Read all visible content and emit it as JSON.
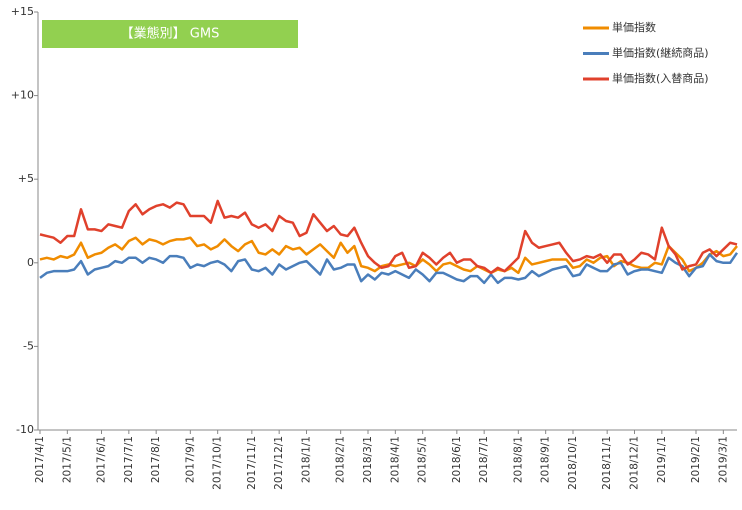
{
  "chart_data": {
    "type": "line",
    "title": "【業態別】 GMS",
    "categories": [
      "2017/4/1",
      null,
      null,
      null,
      "2017/5/1",
      null,
      null,
      null,
      null,
      "2017/6/1",
      null,
      null,
      null,
      "2017/7/1",
      null,
      null,
      null,
      "2017/8/1",
      null,
      null,
      null,
      null,
      "2017/9/1",
      null,
      null,
      null,
      "2017/10/1",
      null,
      null,
      null,
      null,
      "2017/11/1",
      null,
      null,
      null,
      "2017/12/1",
      null,
      null,
      null,
      "2018/1/1",
      null,
      null,
      null,
      null,
      "2018/2/1",
      null,
      null,
      null,
      "2018/3/1",
      null,
      null,
      null,
      "2018/4/1",
      null,
      null,
      null,
      "2018/5/1",
      null,
      null,
      null,
      null,
      "2018/6/1",
      null,
      null,
      null,
      "2018/7/1",
      null,
      null,
      null,
      null,
      "2018/8/1",
      null,
      null,
      null,
      "2018/9/1",
      null,
      null,
      null,
      "2018/10/1",
      null,
      null,
      null,
      null,
      "2018/11/1",
      null,
      null,
      null,
      "2018/12/1",
      null,
      null,
      null,
      "2019/1/1",
      null,
      null,
      null,
      null,
      "2019/2/1",
      null,
      null,
      null,
      "2019/3/1",
      null,
      null
    ],
    "series": [
      {
        "name": "単価指数",
        "color": "#f08c00",
        "values": [
          0.2,
          0.3,
          0.2,
          0.4,
          0.3,
          0.5,
          1.2,
          0.3,
          0.5,
          0.6,
          0.9,
          1.1,
          0.8,
          1.3,
          1.5,
          1.1,
          1.4,
          1.3,
          1.1,
          1.3,
          1.4,
          1.4,
          1.5,
          1.0,
          1.1,
          0.8,
          1.0,
          1.4,
          1.0,
          0.7,
          1.1,
          1.3,
          0.6,
          0.5,
          0.8,
          0.5,
          1.0,
          0.8,
          0.9,
          0.5,
          0.8,
          1.1,
          0.7,
          0.3,
          1.2,
          0.6,
          1.0,
          -0.2,
          -0.3,
          -0.5,
          -0.2,
          -0.1,
          -0.2,
          -0.1,
          0.0,
          -0.2,
          0.2,
          -0.1,
          -0.5,
          -0.1,
          0.0,
          -0.2,
          -0.4,
          -0.5,
          -0.2,
          -0.4,
          -0.6,
          -0.4,
          -0.5,
          -0.3,
          -0.6,
          0.3,
          -0.1,
          0.0,
          0.1,
          0.2,
          0.2,
          0.2,
          -0.3,
          -0.2,
          0.2,
          0.0,
          0.3,
          0.4,
          -0.2,
          0.1,
          0.0,
          -0.2,
          -0.3,
          -0.3,
          0.0,
          -0.1,
          1.0,
          0.6,
          0.2,
          -0.5,
          -0.3,
          0.0,
          0.5,
          0.7,
          0.4,
          0.5,
          1.0
        ]
      },
      {
        "name": "単価指数(継続商品)",
        "color": "#4a7ebb",
        "values": [
          -0.9,
          -0.6,
          -0.5,
          -0.5,
          -0.5,
          -0.4,
          0.1,
          -0.7,
          -0.4,
          -0.3,
          -0.2,
          0.1,
          0.0,
          0.3,
          0.3,
          0.0,
          0.3,
          0.2,
          0.0,
          0.4,
          0.4,
          0.3,
          -0.3,
          -0.1,
          -0.2,
          0.0,
          0.1,
          -0.1,
          -0.5,
          0.1,
          0.2,
          -0.4,
          -0.5,
          -0.3,
          -0.7,
          -0.1,
          -0.4,
          -0.2,
          0.0,
          0.1,
          -0.3,
          -0.7,
          0.2,
          -0.4,
          -0.3,
          -0.1,
          -0.1,
          -1.1,
          -0.7,
          -1.0,
          -0.6,
          -0.7,
          -0.5,
          -0.7,
          -0.9,
          -0.4,
          -0.7,
          -1.1,
          -0.6,
          -0.6,
          -0.8,
          -1.0,
          -1.1,
          -0.8,
          -0.8,
          -1.2,
          -0.7,
          -1.2,
          -0.9,
          -0.9,
          -1.0,
          -0.9,
          -0.5,
          -0.8,
          -0.6,
          -0.4,
          -0.3,
          -0.2,
          -0.8,
          -0.7,
          -0.1,
          -0.3,
          -0.5,
          -0.5,
          -0.1,
          0.0,
          -0.7,
          -0.5,
          -0.4,
          -0.4,
          -0.5,
          -0.6,
          0.3,
          0.0,
          -0.2,
          -0.8,
          -0.3,
          -0.2,
          0.5,
          0.1,
          0.0,
          0.0,
          0.6
        ]
      },
      {
        "name": "単価指数(入替商品)",
        "color": "#e0412c",
        "values": [
          1.7,
          1.6,
          1.5,
          1.2,
          1.6,
          1.6,
          3.2,
          2.0,
          2.0,
          1.9,
          2.3,
          2.2,
          2.1,
          3.1,
          3.5,
          2.9,
          3.2,
          3.4,
          3.5,
          3.3,
          3.6,
          3.5,
          2.8,
          2.8,
          2.8,
          2.4,
          3.7,
          2.7,
          2.8,
          2.7,
          3.0,
          2.3,
          2.1,
          2.3,
          1.9,
          2.8,
          2.5,
          2.4,
          1.6,
          1.8,
          2.9,
          2.4,
          1.9,
          2.2,
          1.7,
          1.6,
          2.1,
          1.2,
          0.4,
          0.0,
          -0.3,
          -0.2,
          0.4,
          0.6,
          -0.3,
          -0.2,
          0.6,
          0.3,
          -0.1,
          0.3,
          0.6,
          0.0,
          0.2,
          0.2,
          -0.2,
          -0.3,
          -0.6,
          -0.3,
          -0.5,
          -0.1,
          0.3,
          1.9,
          1.2,
          0.9,
          1.0,
          1.1,
          1.2,
          0.6,
          0.1,
          0.2,
          0.4,
          0.3,
          0.5,
          0.0,
          0.5,
          0.5,
          -0.1,
          0.2,
          0.6,
          0.5,
          0.2,
          2.1,
          1.0,
          0.5,
          -0.4,
          -0.2,
          -0.1,
          0.6,
          0.8,
          0.4,
          0.8,
          1.2,
          1.1
        ]
      }
    ],
    "ylim": [
      -10,
      15
    ],
    "yticks": [
      {
        "value": 15,
        "label": "+15"
      },
      {
        "value": 10,
        "label": "+10"
      },
      {
        "value": 5,
        "label": "+5"
      },
      0,
      -5,
      -10
    ],
    "grid": false,
    "legend": "top-right"
  }
}
